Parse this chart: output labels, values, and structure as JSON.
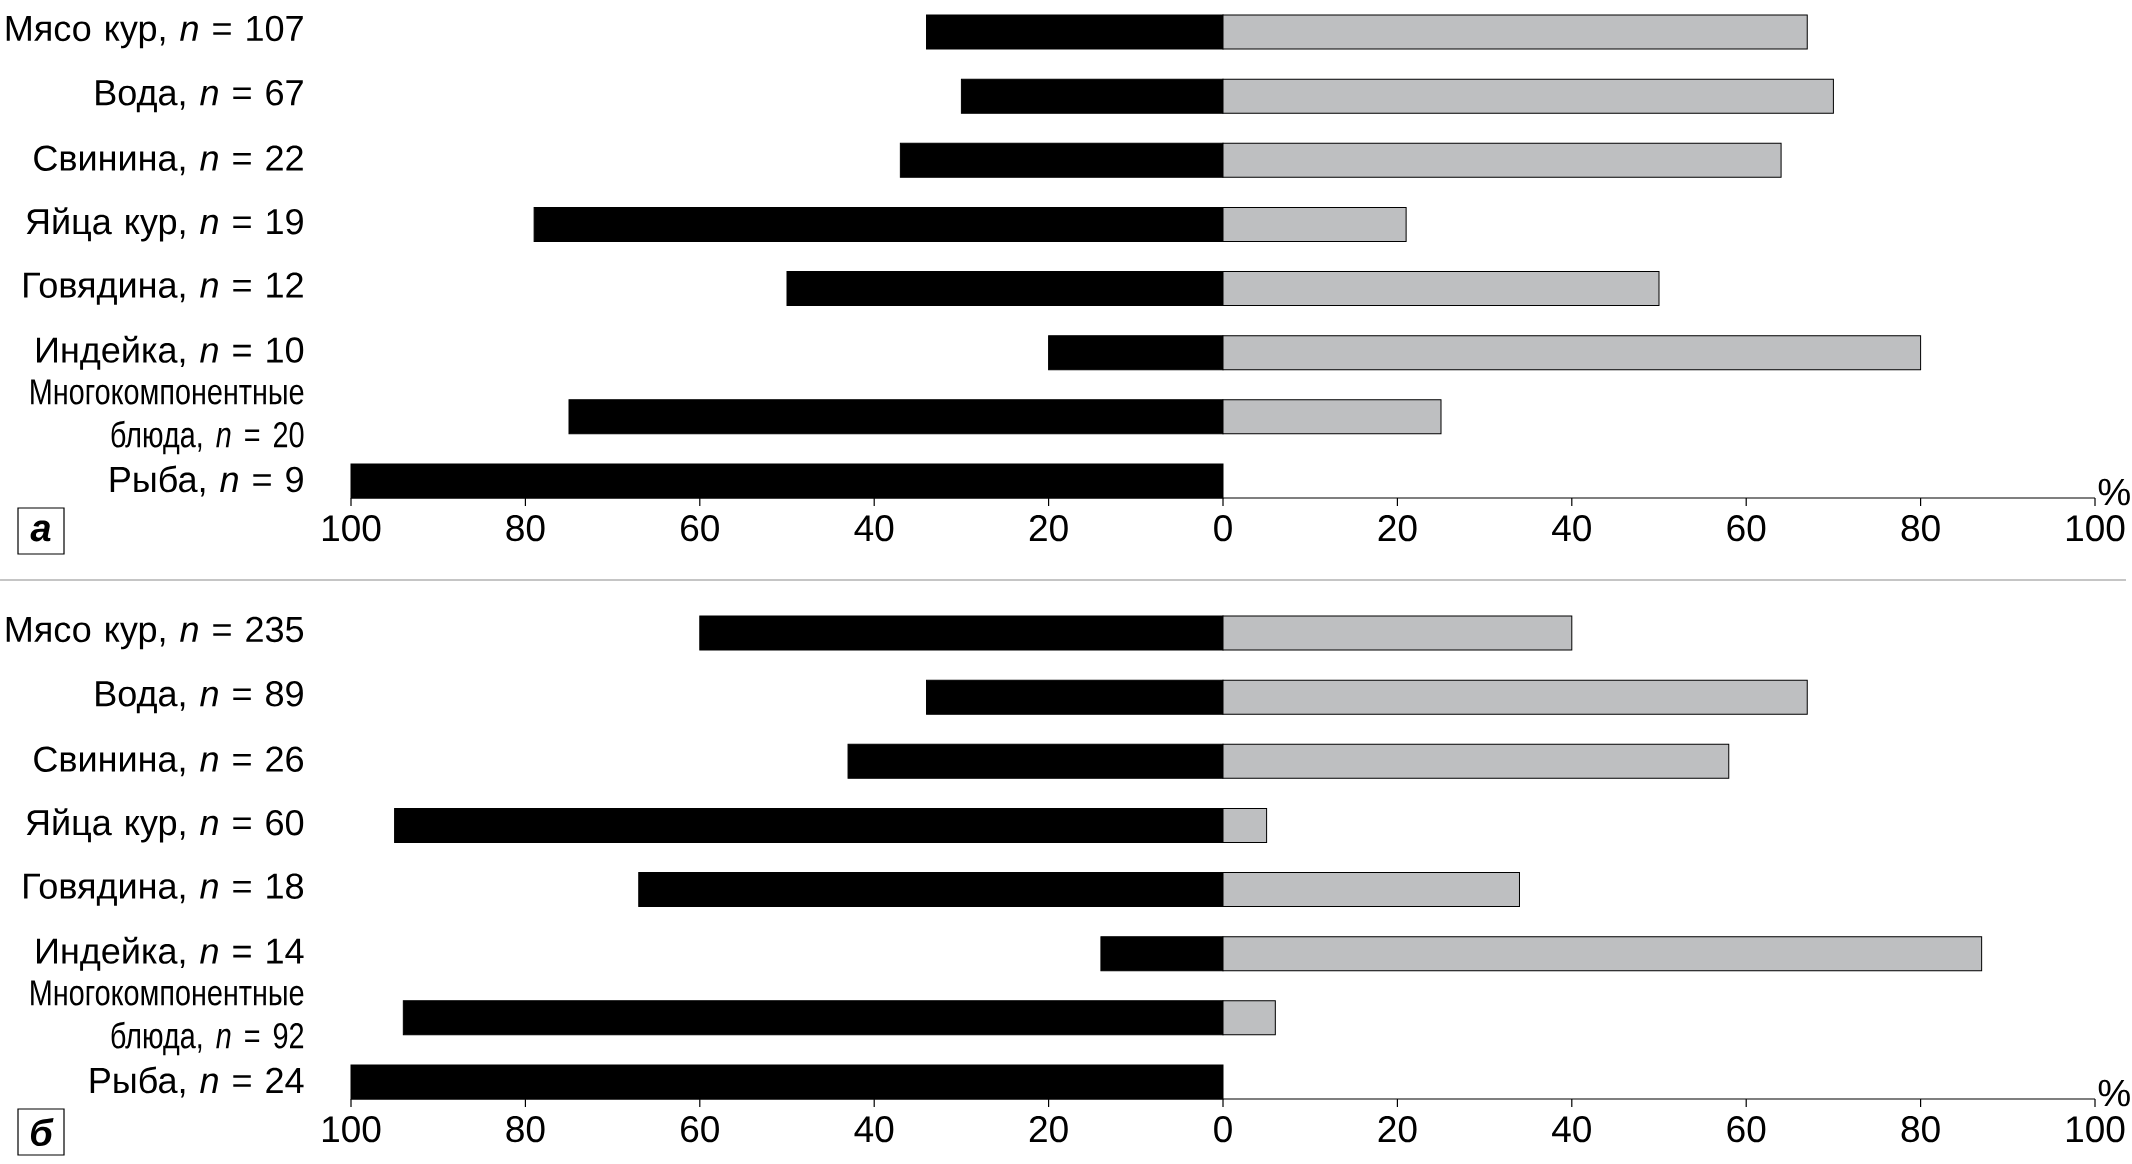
{
  "chart_data": [
    {
      "type": "bar",
      "orientation": "horizontal",
      "stacked": true,
      "categories": [
        "Мясо кур, *n* = 107",
        "Вода, *n* = 67",
        "Свинина, *n* = 22",
        "Яйца кур, *n* = 19",
        "Говядина, *n* = 12",
        "Индейка, *n* = 10",
        "Многокомпонентные блюда, *n* = 20",
        "Рыба, *n* = 9"
      ],
      "series": [
        {
          "color": "#000000",
          "values": [
            -34,
            -30,
            -37,
            -79,
            -50,
            -20,
            -75,
            -100
          ]
        },
        {
          "color": "#bebfc1",
          "values": [
            67,
            70,
            64,
            21,
            50,
            80,
            25,
            null
          ]
        }
      ],
      "xlim": [
        -100,
        100
      ],
      "xticks": [
        {
          "value": -100,
          "label": "100"
        },
        {
          "value": -80,
          "label": "80"
        },
        {
          "value": -60,
          "label": "60"
        },
        {
          "value": -40,
          "label": "40"
        },
        {
          "value": -20,
          "label": "20"
        },
        0,
        20,
        40,
        60,
        80,
        100
      ],
      "xlabel": "%",
      "annotations": [
        "а"
      ]
    },
    {
      "type": "bar",
      "orientation": "horizontal",
      "stacked": true,
      "categories": [
        "Мясо кур, *n* = 235",
        "Вода, *n* = 89",
        "Свинина, *n* = 26",
        "Яйца кур, *n* = 60",
        "Говядина, *n* = 18",
        "Индейка, *n* = 14",
        "Многокомпонентные блюда, *n* = 92",
        "Рыба, *n* = 24"
      ],
      "series": [
        {
          "color": "#000000",
          "values": [
            -60,
            -34,
            -43,
            -95,
            -67,
            -14,
            -94,
            -100
          ]
        },
        {
          "color": "#bebfc1",
          "values": [
            40,
            67,
            58,
            5,
            34,
            87,
            6,
            null
          ]
        }
      ],
      "xlim": [
        -100,
        100
      ],
      "xticks": [
        {
          "value": -100,
          "label": "100"
        },
        {
          "value": -80,
          "label": "80"
        },
        {
          "value": -60,
          "label": "60"
        },
        {
          "value": -40,
          "label": "40"
        },
        {
          "value": -20,
          "label": "20"
        },
        0,
        20,
        40,
        60,
        80,
        100
      ],
      "xlabel": "%",
      "annotations": [
        "б"
      ]
    }
  ]
}
